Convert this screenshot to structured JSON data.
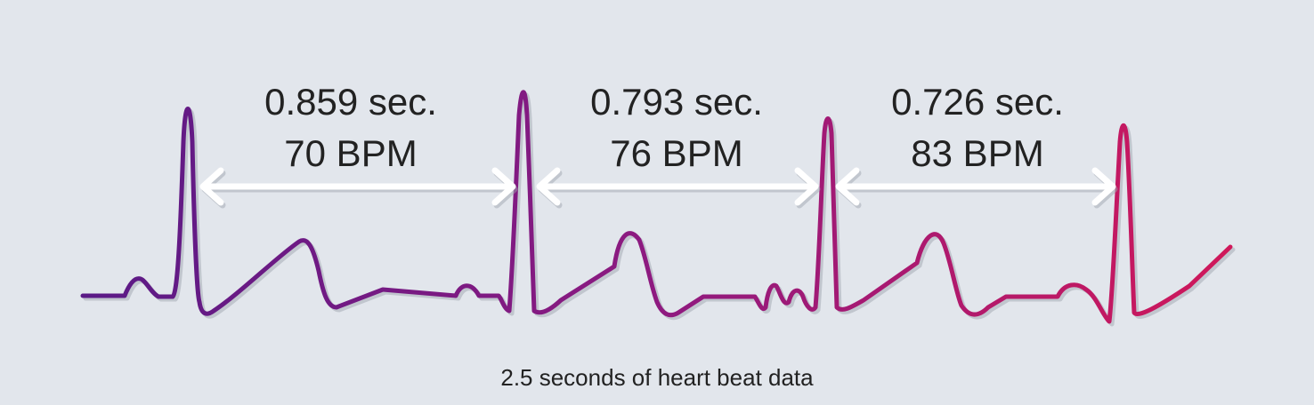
{
  "intervals": [
    {
      "duration": "0.859 sec.",
      "bpm": "70 BPM"
    },
    {
      "duration": "0.793 sec.",
      "bpm": "76 BPM"
    },
    {
      "duration": "0.726 sec.",
      "bpm": "83 BPM"
    }
  ],
  "caption": "2.5 seconds of heart beat data",
  "colors": {
    "background": "#e2e6ec",
    "trace_start": "#5a1a86",
    "trace_end": "#d0185a",
    "arrow": "#ffffff",
    "text": "#222222"
  }
}
